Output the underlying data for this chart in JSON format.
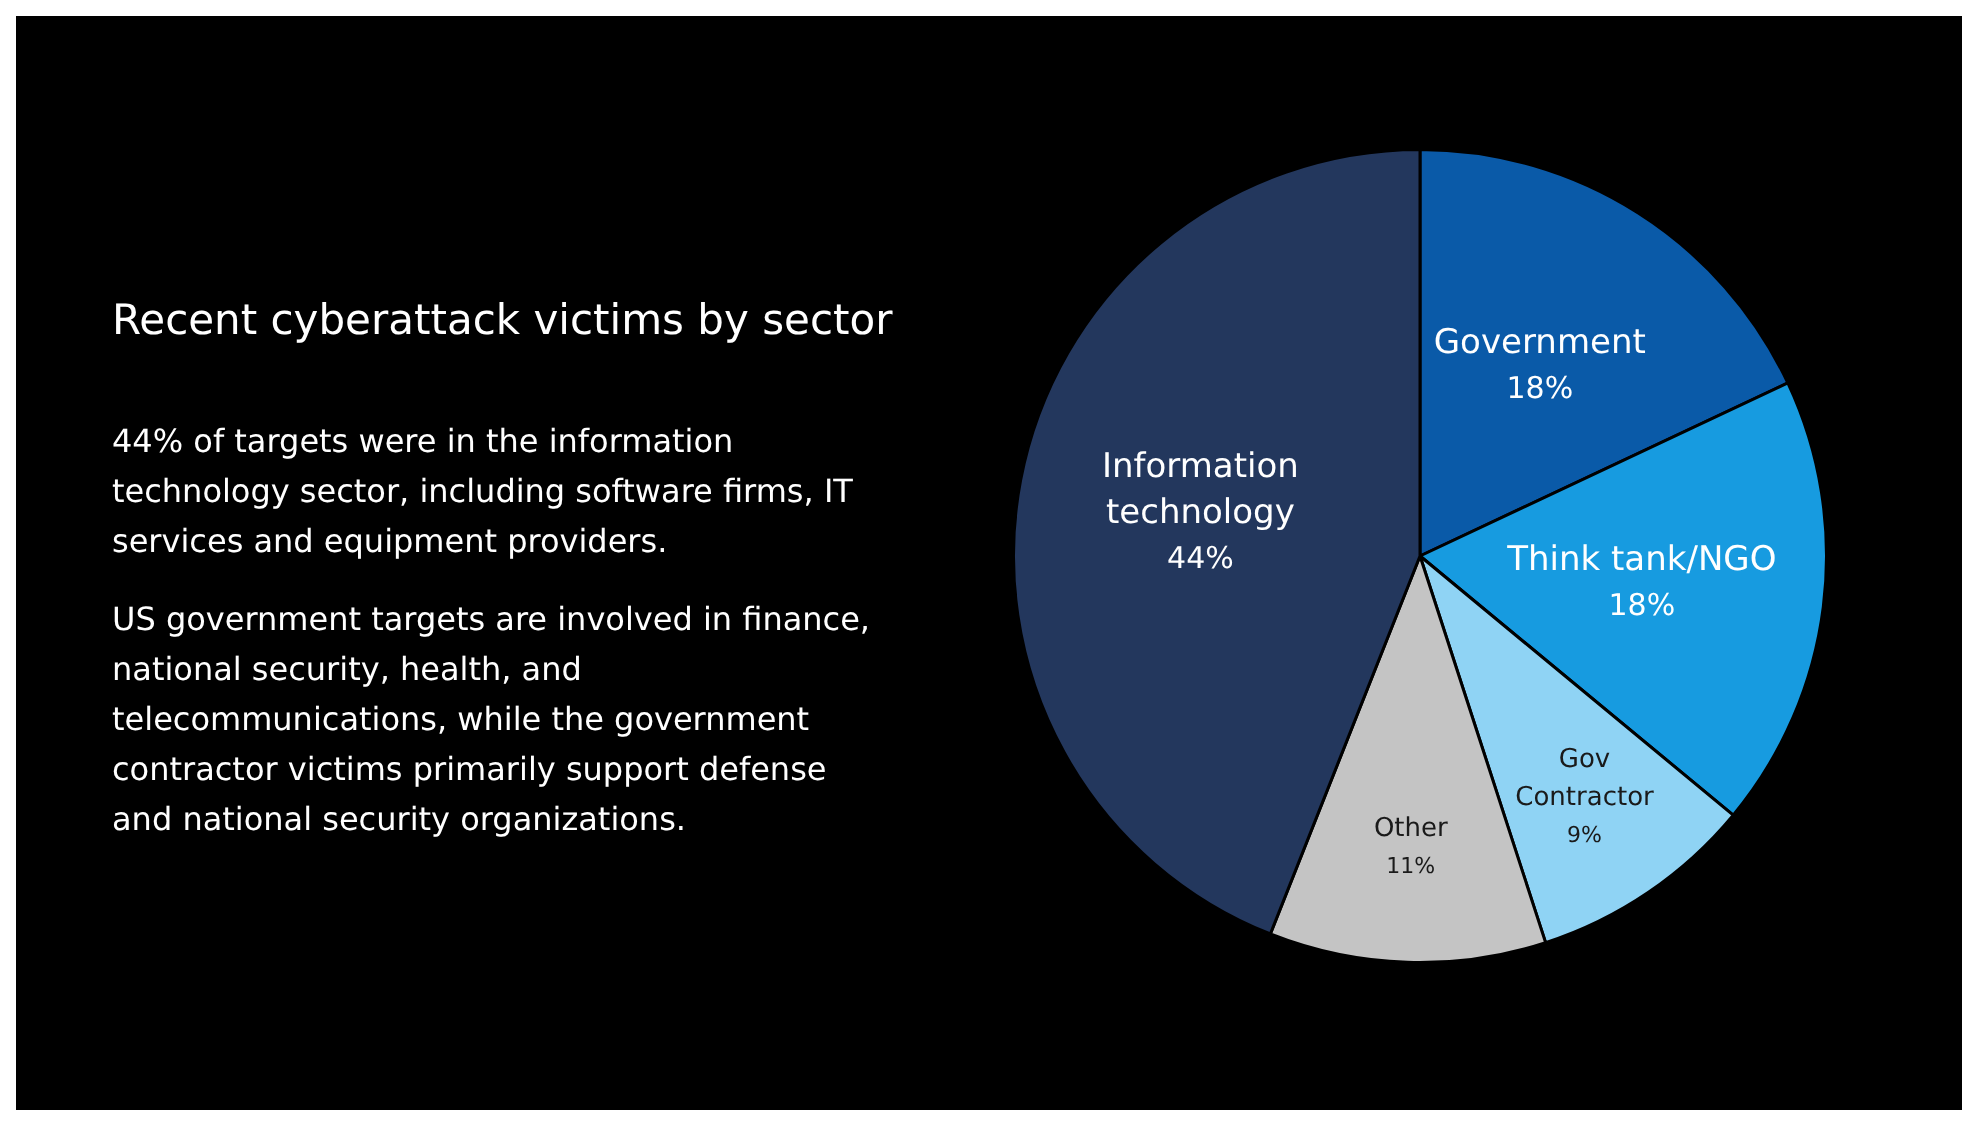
{
  "chart_data": {
    "type": "pie",
    "title": "Recent cyberattack victims by sector",
    "annotations": [
      "44% of targets were in the information technology sector, including software firms, IT services and equipment providers.",
      "US government targets are involved in finance, national security, health, and telecommunications, while the government contractor victims primarily support defense and national security organizations."
    ],
    "categories": [
      "Government",
      "Think tank/NGO",
      "Gov Contractor",
      "Other",
      "Information technology"
    ],
    "values": [
      18,
      18,
      9,
      11,
      44
    ],
    "colors": [
      "#0a5aa8",
      "#179be0",
      "#8fd3f4",
      "#c4c4c4",
      "#23375d"
    ],
    "value_labels": [
      "18%",
      "18%",
      "9%",
      "11%",
      "44%"
    ],
    "legend": false
  }
}
